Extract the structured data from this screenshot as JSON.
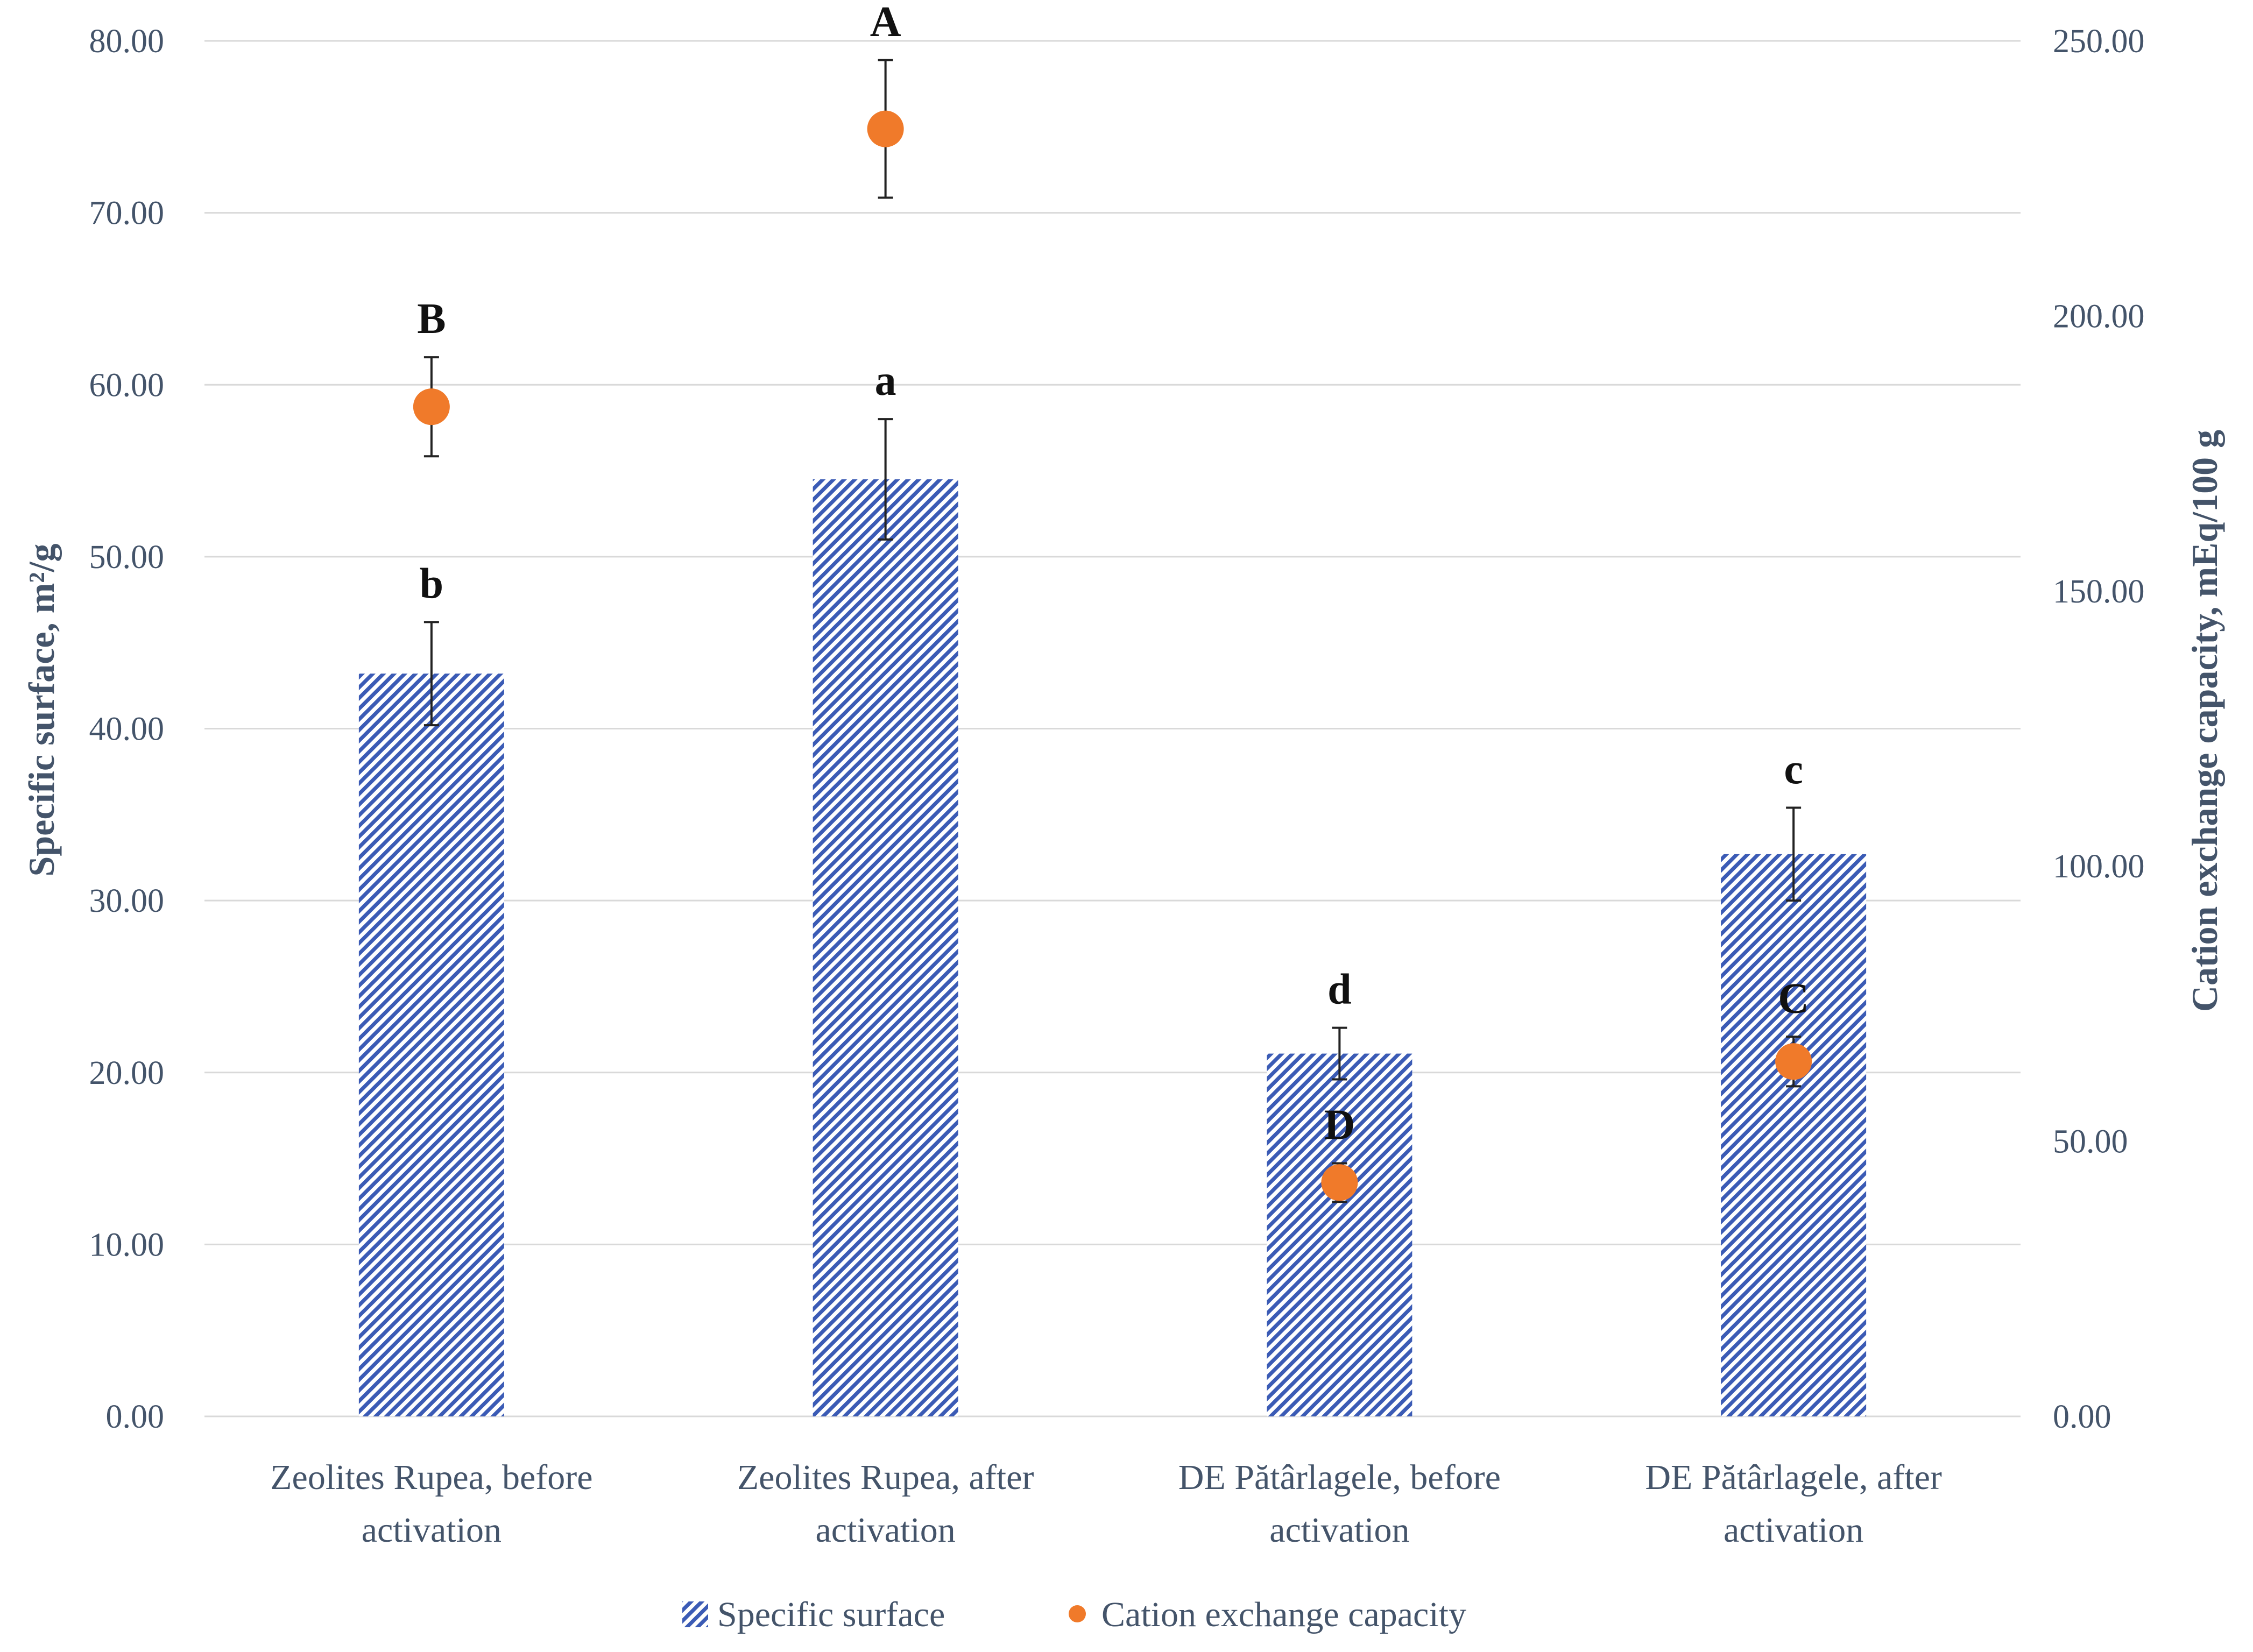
{
  "colors": {
    "bar": "#3b5bb5",
    "dot": "#f07a2a",
    "grid": "#d9d9d9",
    "text": "#44546a"
  },
  "chart_data": {
    "type": "bar",
    "categories": [
      [
        "Zeolites Rupea, before",
        "activation"
      ],
      [
        "Zeolites Rupea, after",
        "activation"
      ],
      [
        "DE Pătârlagele, before",
        "activation"
      ],
      [
        "DE Pătârlagele, after",
        "activation"
      ]
    ],
    "series": [
      {
        "name": "Specific surface",
        "kind": "bar",
        "axis": "left",
        "pattern": "diagonal-hatch",
        "values": [
          43.2,
          54.5,
          21.1,
          32.7
        ],
        "errors": [
          3.0,
          3.5,
          1.5,
          2.7
        ],
        "significance": [
          "b",
          "a",
          "d",
          "c"
        ]
      },
      {
        "name": "Cation exchange capacity",
        "kind": "point",
        "axis": "right",
        "values": [
          183.5,
          234.0,
          42.5,
          64.5
        ],
        "errors": [
          9.0,
          12.5,
          3.5,
          4.5
        ],
        "significance": [
          "B",
          "A",
          "D",
          "C"
        ]
      }
    ],
    "y_left": {
      "label": "Specific surface, m²/g",
      "min": 0,
      "max": 80,
      "step": 10,
      "ticks": [
        "0.00",
        "10.00",
        "20.00",
        "30.00",
        "40.00",
        "50.00",
        "60.00",
        "70.00",
        "80.00"
      ]
    },
    "y_right": {
      "label": "Cation exchange capacity, mEq/100 g",
      "min": 0,
      "max": 250,
      "step": 50,
      "ticks": [
        "0.00",
        "50.00",
        "100.00",
        "150.00",
        "200.00",
        "250.00"
      ]
    },
    "grid": true,
    "legend": {
      "position": "bottom",
      "items": [
        "Specific surface",
        "Cation exchange capacity"
      ]
    }
  }
}
